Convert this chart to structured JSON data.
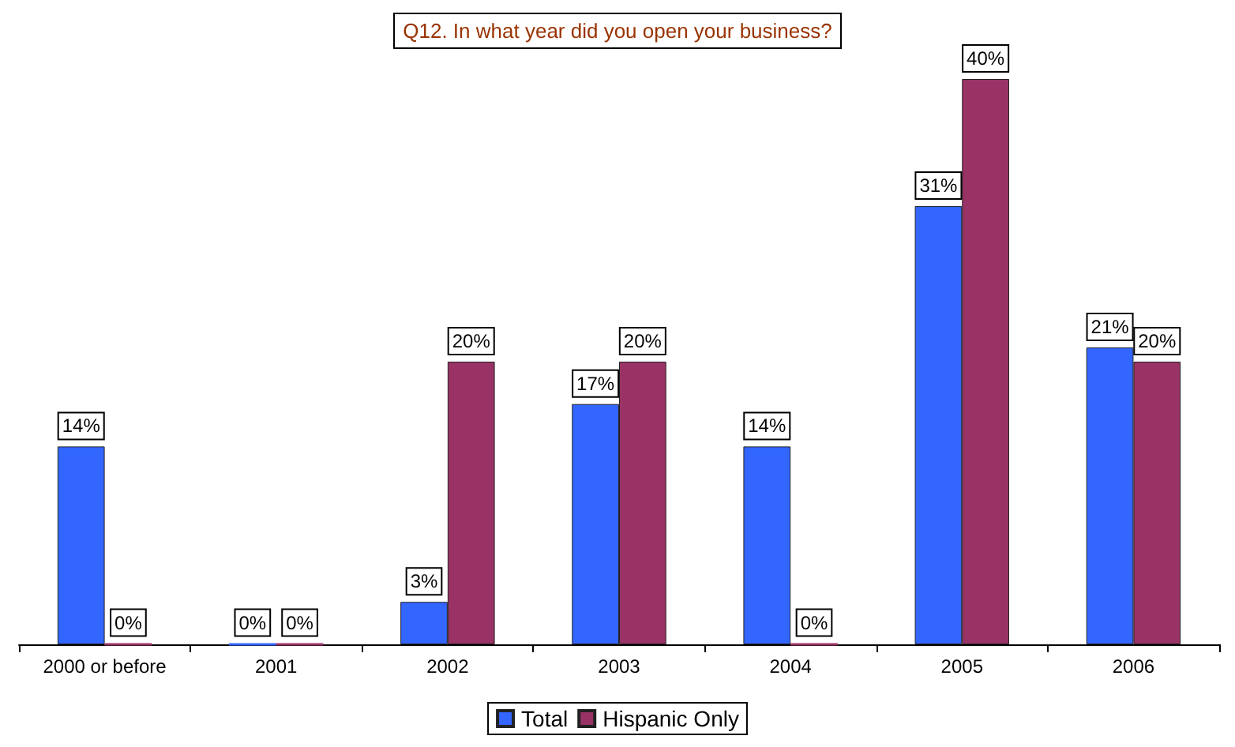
{
  "chart_data": {
    "type": "bar",
    "title": "Q12. In what year did you open your business?",
    "categories": [
      "2000 or before",
      "2001",
      "2002",
      "2003",
      "2004",
      "2005",
      "2006"
    ],
    "series": [
      {
        "name": "Total",
        "color": "#3366ff",
        "values": [
          14,
          0,
          3,
          17,
          14,
          31,
          21
        ],
        "value_labels": [
          "14%",
          "0%",
          "3%",
          "17%",
          "14%",
          "31%",
          "21%"
        ]
      },
      {
        "name": "Hispanic Only",
        "color": "#993366",
        "values": [
          0,
          0,
          20,
          20,
          0,
          40,
          20
        ],
        "value_labels": [
          "0%",
          "0%",
          "20%",
          "20%",
          "0%",
          "40%",
          "20%"
        ]
      }
    ],
    "legend": "bottom"
  }
}
